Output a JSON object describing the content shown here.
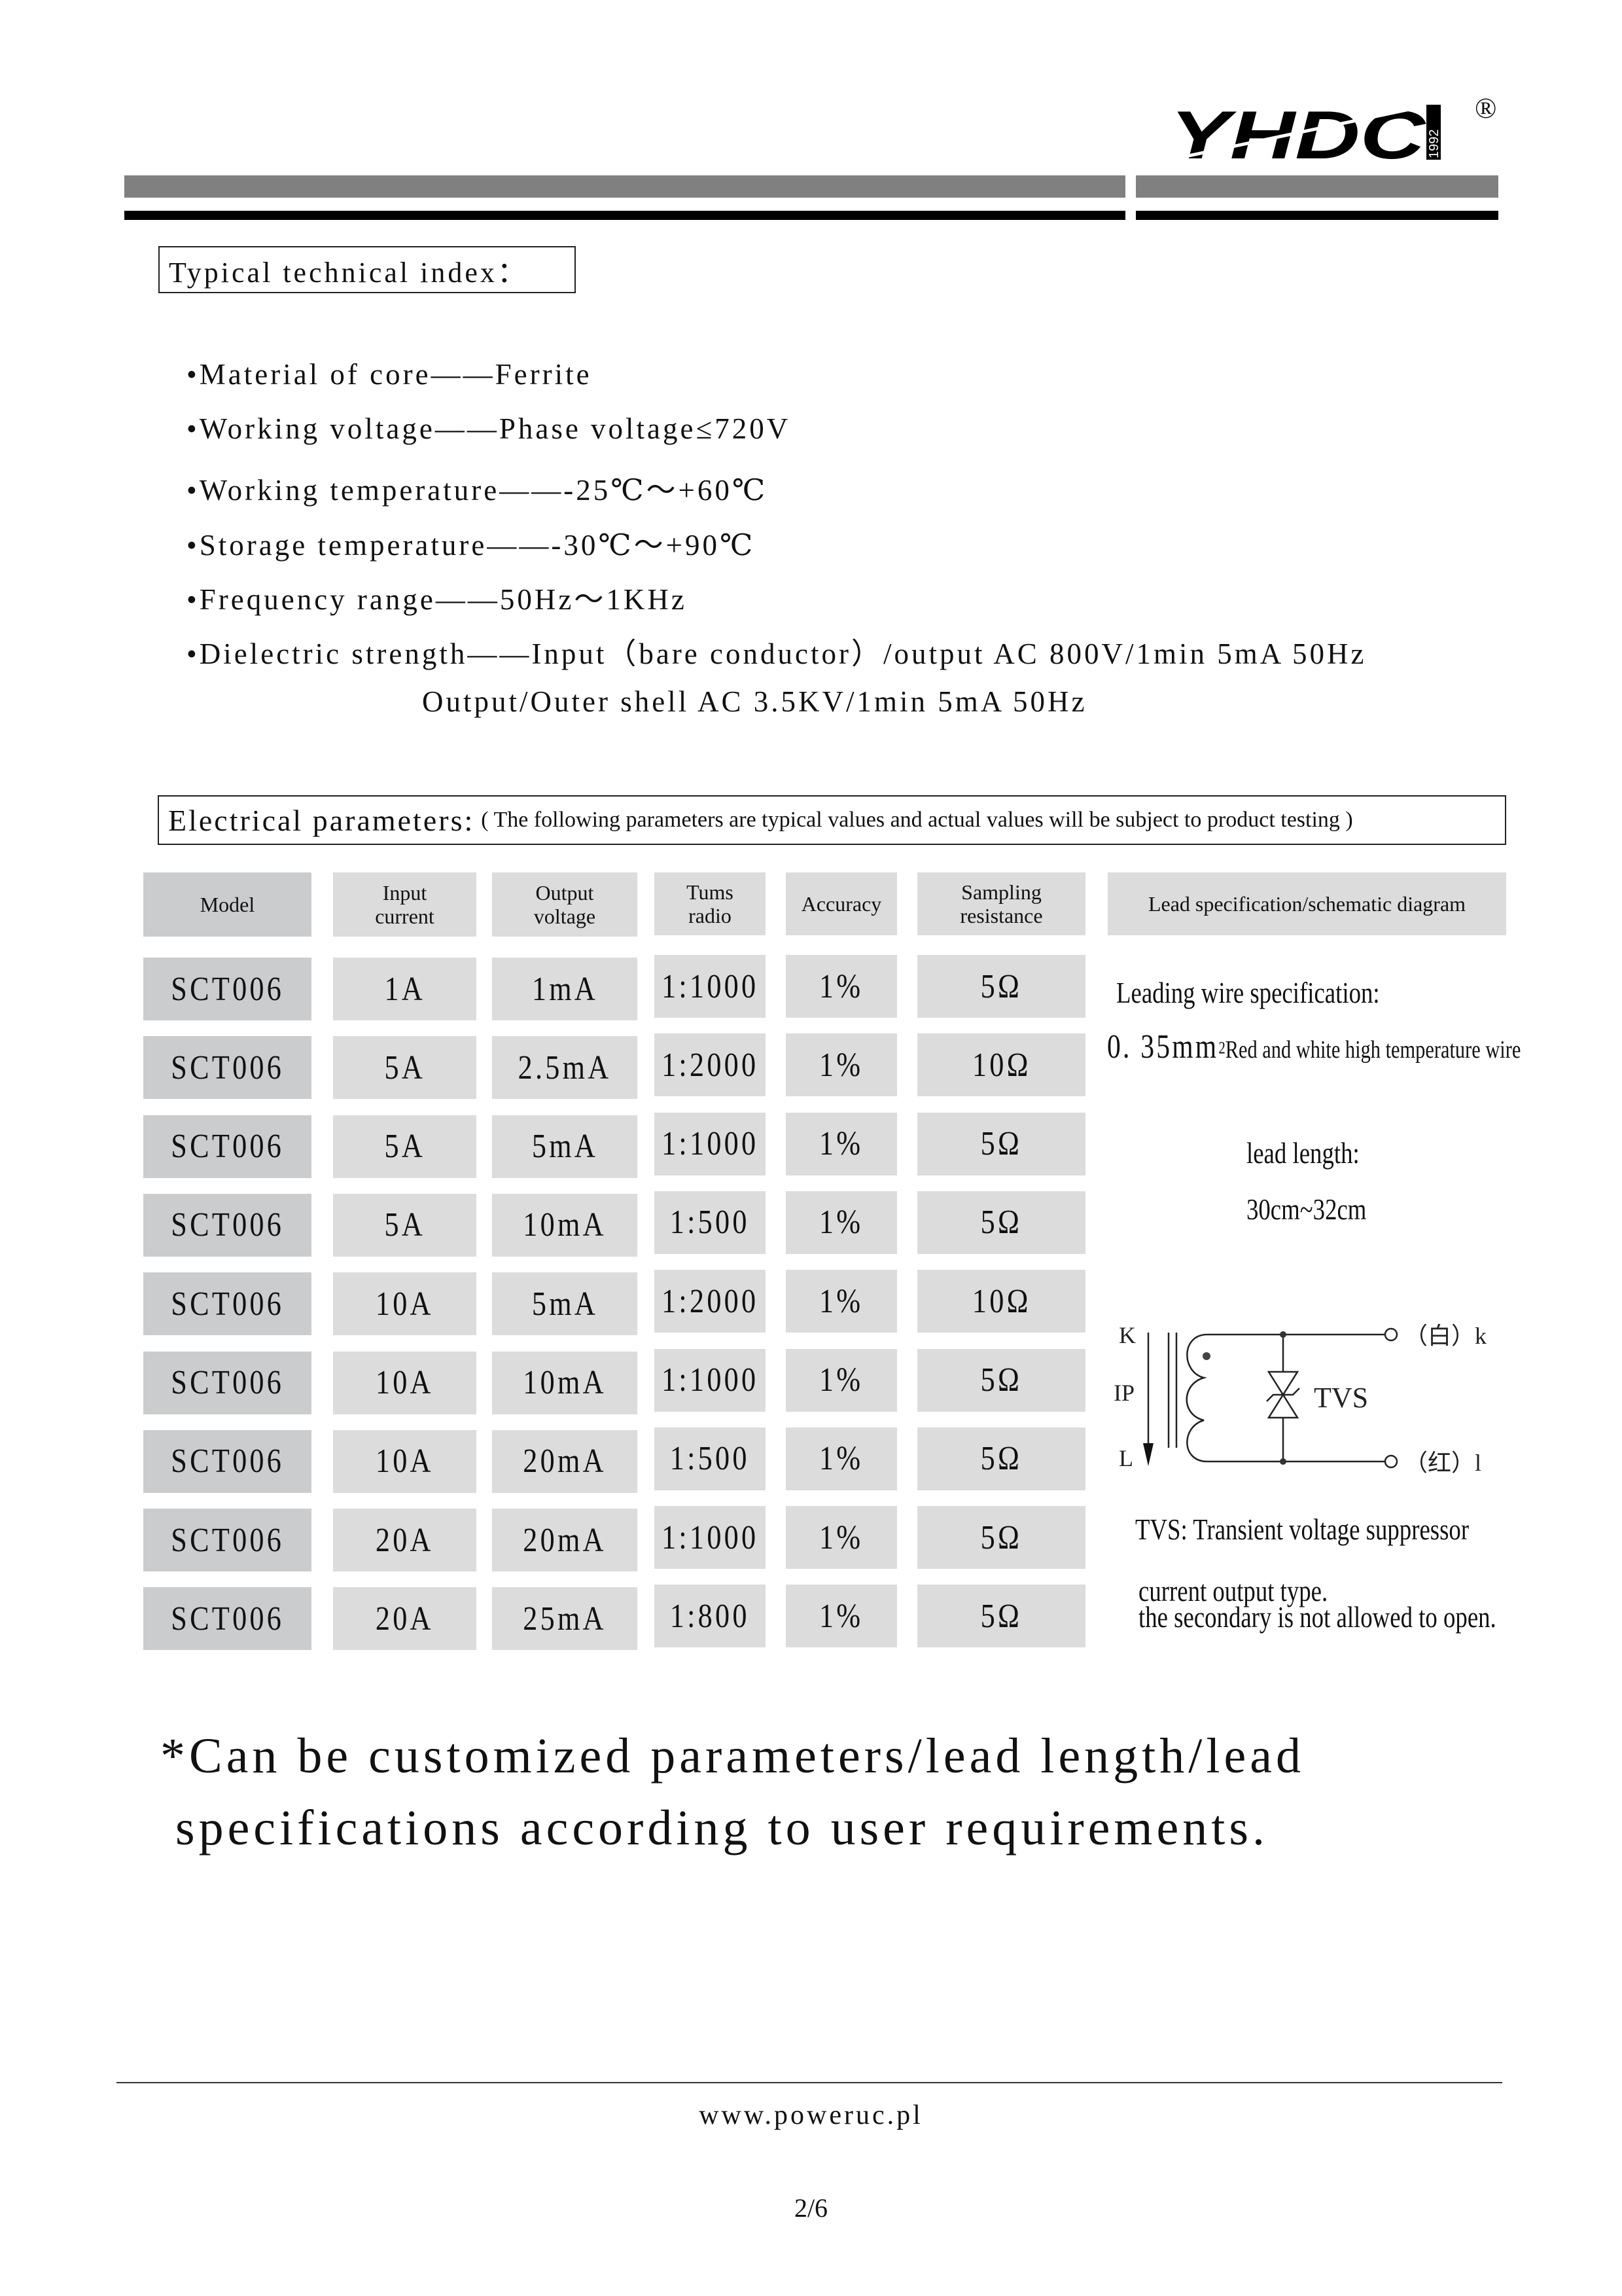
{
  "logo": {
    "text": "YHDC",
    "year": "1992",
    "registered": "®"
  },
  "technical": {
    "title": "Typical technical index：",
    "items": [
      "•Material of core——Ferrite",
      "•Working voltage——Phase voltage≤720V",
      "•Working temperature——-25℃～+60℃",
      "•Storage temperature——-30℃～+90℃",
      "•Frequency range——50Hz～1KHz",
      "•Dielectric strength——Input（bare conductor）/output AC 800V/1min 5mA  50Hz"
    ],
    "continuation": "Output/Outer shell AC 3.5KV/1min 5mA  50Hz"
  },
  "electrical": {
    "title": "Electrical parameters:",
    "note": "( The following parameters are typical values and actual values will be subject to product testing )"
  },
  "table": {
    "headers": [
      "Model",
      "Input current",
      "Output voltage",
      "Tums radio",
      "Accuracy",
      "Sampling resistance",
      "Lead specification/schematic diagram"
    ],
    "rows": [
      [
        "SCT006",
        "1A",
        "1mA",
        "1:1000",
        "1%",
        "5Ω"
      ],
      [
        "SCT006",
        "5A",
        "2.5mA",
        "1:2000",
        "1%",
        "10Ω"
      ],
      [
        "SCT006",
        "5A",
        "5mA",
        "1:1000",
        "1%",
        "5Ω"
      ],
      [
        "SCT006",
        "5A",
        "10mA",
        "1:500",
        "1%",
        "5Ω"
      ],
      [
        "SCT006",
        "10A",
        "5mA",
        "1:2000",
        "1%",
        "10Ω"
      ],
      [
        "SCT006",
        "10A",
        "10mA",
        "1:1000",
        "1%",
        "5Ω"
      ],
      [
        "SCT006",
        "10A",
        "20mA",
        "1:500",
        "1%",
        "5Ω"
      ],
      [
        "SCT006",
        "20A",
        "20mA",
        "1:1000",
        "1%",
        "5Ω"
      ],
      [
        "SCT006",
        "20A",
        "25mA",
        "1:800",
        "1%",
        "5Ω"
      ]
    ]
  },
  "lead": {
    "spec_title": "Leading wire specification:",
    "wire_size": "0. 35mm",
    "wire_sup": "2",
    "wire_desc": "Red and white high temperature wire",
    "length_label": "lead length:",
    "length_value": "30cm~32cm"
  },
  "diagram": {
    "k": "K",
    "ip": "IP",
    "l": "L",
    "tvs": "TVS",
    "white_terminal": "（白）k",
    "red_terminal": "（红）l",
    "tvs_note": "TVS:  Transient voltage suppressor",
    "note1": "current output type.",
    "note2": "the secondary is not allowed to open."
  },
  "custom": {
    "line1": "*Can be customized parameters/lead length/lead",
    "line2": "specifications according to user requirements."
  },
  "footer": {
    "url": "www.poweruc.pl",
    "page": "2/6"
  }
}
